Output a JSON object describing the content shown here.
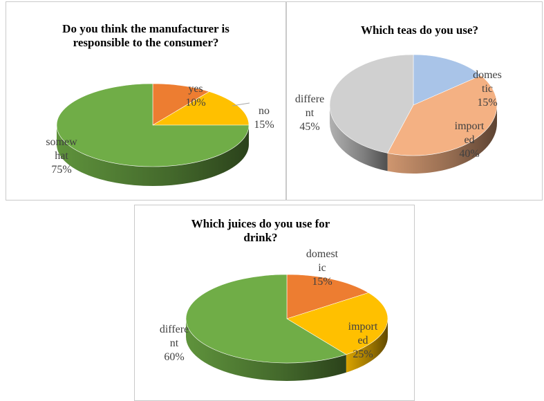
{
  "chart_data": [
    {
      "type": "pie",
      "title": "Do you think the manufacturer is responsible to the consumer?",
      "title_lines": [
        "Do you think the manufacturer is",
        "responsible to the consumer?"
      ],
      "slices": [
        {
          "name": "yes",
          "value": 10,
          "pct_label": "10%",
          "label_lines": [
            "yes"
          ],
          "color": "#ED7D31"
        },
        {
          "name": "no",
          "value": 15,
          "pct_label": "15%",
          "label_lines": [
            "no"
          ],
          "color": "#FFC000"
        },
        {
          "name": "somewhat",
          "value": 75,
          "pct_label": "75%",
          "label_lines": [
            "somew",
            "hat"
          ],
          "color": "#70AD47"
        }
      ],
      "style": "3d"
    },
    {
      "type": "pie",
      "title": "Which teas do you use?",
      "title_lines": [
        "Which teas do you use?"
      ],
      "slices": [
        {
          "name": "domestic",
          "value": 15,
          "pct_label": "15%",
          "label_lines": [
            "domes",
            "tic"
          ],
          "color": "#A9C4E8"
        },
        {
          "name": "imported",
          "value": 40,
          "pct_label": "40%",
          "label_lines": [
            "import",
            "ed"
          ],
          "color": "#F4B183"
        },
        {
          "name": "different",
          "value": 45,
          "pct_label": "45%",
          "label_lines": [
            "differe",
            "nt"
          ],
          "color": "#D0D0D0"
        }
      ],
      "style": "3d"
    },
    {
      "type": "pie",
      "title": "Which juices do you use for drink?",
      "title_lines": [
        "Which juices do you use for",
        "drink?"
      ],
      "slices": [
        {
          "name": "domestic",
          "value": 15,
          "pct_label": "15%",
          "label_lines": [
            "domest",
            "ic"
          ],
          "color": "#ED7D31"
        },
        {
          "name": "imported",
          "value": 25,
          "pct_label": "25%",
          "label_lines": [
            "import",
            "ed"
          ],
          "color": "#FFC000"
        },
        {
          "name": "different",
          "value": 60,
          "pct_label": "60%",
          "label_lines": [
            "differe",
            "nt"
          ],
          "color": "#70AD47"
        }
      ],
      "style": "3d"
    }
  ]
}
